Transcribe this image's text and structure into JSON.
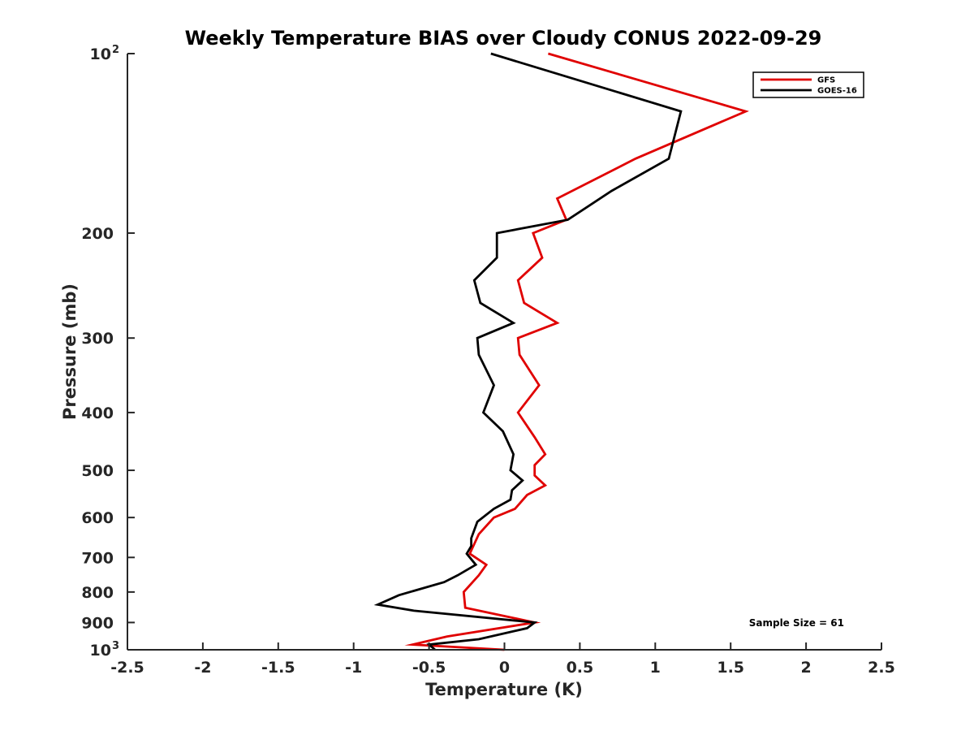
{
  "chart_data": {
    "type": "line",
    "title": "Weekly Temperature BIAS over Cloudy CONUS 2022-09-29",
    "xlabel": "Temperature (K)",
    "ylabel": "Pressure (mb)",
    "xlim": [
      -2.5,
      2.5
    ],
    "ylim": [
      100,
      1000
    ],
    "y_scale": "log",
    "y_reversed": true,
    "grid": false,
    "legend_position": "top-right",
    "x_ticks": [
      {
        "value": -2.5,
        "label": "-2.5"
      },
      {
        "value": -2,
        "label": "-2"
      },
      {
        "value": -1.5,
        "label": "-1.5"
      },
      {
        "value": -1,
        "label": "-1"
      },
      {
        "value": -0.5,
        "label": "-0.5"
      },
      {
        "value": 0,
        "label": "0"
      },
      {
        "value": 0.5,
        "label": "0.5"
      },
      {
        "value": 1,
        "label": "1"
      },
      {
        "value": 1.5,
        "label": "1.5"
      },
      {
        "value": 2,
        "label": "2"
      },
      {
        "value": 2.5,
        "label": "2.5"
      }
    ],
    "y_ticks": [
      {
        "value": 100,
        "label": "10",
        "sup": "2"
      },
      {
        "value": 200,
        "label": "200"
      },
      {
        "value": 300,
        "label": "300"
      },
      {
        "value": 400,
        "label": "400"
      },
      {
        "value": 500,
        "label": "500"
      },
      {
        "value": 600,
        "label": "600"
      },
      {
        "value": 700,
        "label": "700"
      },
      {
        "value": 800,
        "label": "800"
      },
      {
        "value": 900,
        "label": "900"
      },
      {
        "value": 1000,
        "label": "10",
        "sup": "3"
      }
    ],
    "series": [
      {
        "name": "GFS",
        "color": "#e00000",
        "points": [
          [
            0.29,
            100
          ],
          [
            1.6,
            125
          ],
          [
            0.87,
            150
          ],
          [
            0.35,
            175
          ],
          [
            0.41,
            190
          ],
          [
            0.19,
            200
          ],
          [
            0.25,
            220
          ],
          [
            0.09,
            240
          ],
          [
            0.13,
            262
          ],
          [
            0.35,
            283
          ],
          [
            0.09,
            300
          ],
          [
            0.1,
            320
          ],
          [
            0.23,
            360
          ],
          [
            0.09,
            400
          ],
          [
            0.2,
            440
          ],
          [
            0.27,
            470
          ],
          [
            0.2,
            490
          ],
          [
            0.2,
            510
          ],
          [
            0.27,
            530
          ],
          [
            0.15,
            550
          ],
          [
            0.07,
            580
          ],
          [
            -0.07,
            600
          ],
          [
            -0.17,
            640
          ],
          [
            -0.23,
            690
          ],
          [
            -0.12,
            720
          ],
          [
            -0.17,
            750
          ],
          [
            -0.27,
            800
          ],
          [
            -0.26,
            850
          ],
          [
            0.2,
            900
          ],
          [
            -0.38,
            950
          ],
          [
            -0.61,
            980
          ],
          [
            0.0,
            1000
          ]
        ]
      },
      {
        "name": "GOES-16",
        "color": "#000000",
        "points": [
          [
            -0.09,
            100
          ],
          [
            1.17,
            125
          ],
          [
            1.09,
            150
          ],
          [
            0.71,
            170
          ],
          [
            0.42,
            190
          ],
          [
            -0.05,
            200
          ],
          [
            -0.05,
            220
          ],
          [
            -0.2,
            240
          ],
          [
            -0.16,
            262
          ],
          [
            0.06,
            283
          ],
          [
            -0.18,
            300
          ],
          [
            -0.17,
            320
          ],
          [
            -0.07,
            360
          ],
          [
            -0.14,
            400
          ],
          [
            -0.01,
            430
          ],
          [
            0.06,
            470
          ],
          [
            0.04,
            500
          ],
          [
            0.12,
            520
          ],
          [
            0.05,
            540
          ],
          [
            0.04,
            560
          ],
          [
            -0.07,
            580
          ],
          [
            -0.18,
            610
          ],
          [
            -0.22,
            650
          ],
          [
            -0.22,
            670
          ],
          [
            -0.25,
            690
          ],
          [
            -0.19,
            720
          ],
          [
            -0.31,
            750
          ],
          [
            -0.4,
            770
          ],
          [
            -0.7,
            810
          ],
          [
            -0.84,
            840
          ],
          [
            -0.6,
            860
          ],
          [
            0.2,
            900
          ],
          [
            0.15,
            920
          ],
          [
            -0.17,
            960
          ],
          [
            -0.5,
            980
          ],
          [
            -0.46,
            1000
          ]
        ]
      }
    ],
    "annotations": [
      {
        "text": "Sample Size = 61",
        "position": "bottom-right"
      }
    ]
  }
}
